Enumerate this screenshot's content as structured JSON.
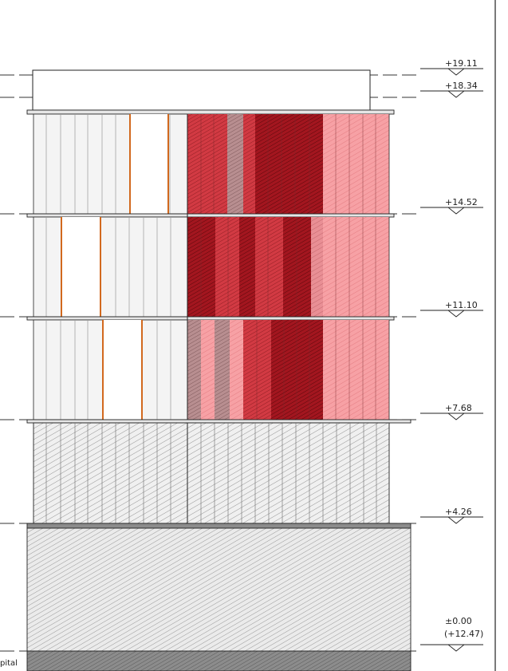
{
  "drawing": {
    "type": "facade elevation",
    "levels": [
      "+19.11",
      "+18.34",
      "+14.52",
      "+11.10",
      "+7.68",
      "+4.26",
      "±0.00"
    ],
    "base_sub_label": "(+12.47)",
    "corner_caption": "pital",
    "colors": {
      "line": "#222222",
      "level_dash": "#333333",
      "panel_light": "#f3f3f3",
      "frame_orange": "#d2691e",
      "red_dark": "#b3202a",
      "red_mid": "#d9484f",
      "red_light": "#f5a3a6",
      "ground_hatch": "#9a9a9a",
      "slab": "#e6e6e6"
    }
  }
}
